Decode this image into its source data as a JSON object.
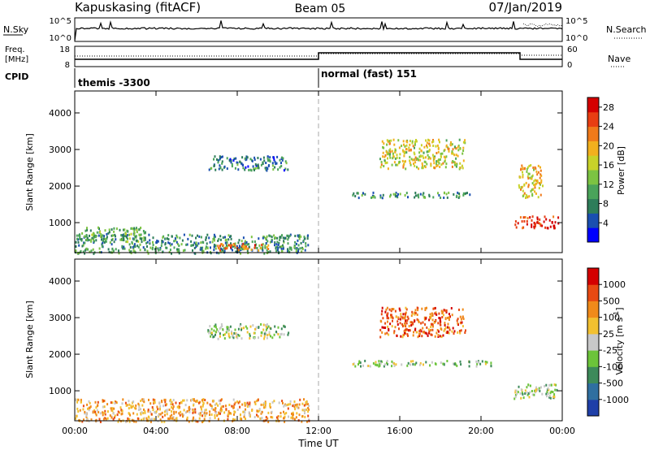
{
  "header": {
    "station": "Kapuskasing (fitACF)",
    "beam": "Beam 05",
    "date": "07/Jan/2019"
  },
  "params": {
    "nsky_label": "N.Sky",
    "nsearch_label": "N.Search",
    "freq_label_1": "Freq.",
    "freq_label_2": "[MHz]",
    "nave_label": "Nave",
    "cpid_label": "CPID",
    "nsky_ticks": [
      "10^5",
      "10^0"
    ],
    "nsearch_ticks": [
      "10^5",
      "10^0"
    ],
    "freq_ticks": [
      "18",
      "8"
    ],
    "nave_ticks": [
      "60",
      "0"
    ],
    "cpid_segments": [
      {
        "start_hour": 0,
        "label": "themis -3300"
      },
      {
        "start_hour": 12,
        "label": "normal (fast) 151"
      }
    ]
  },
  "chart_data": [
    {
      "type": "heatmap",
      "title": "",
      "ylabel": "Slant Range [km]",
      "ylim": [
        180,
        4600
      ],
      "yticks": [
        "1000",
        "2000",
        "3000",
        "4000"
      ],
      "xlim": [
        0,
        24
      ],
      "xticks": [
        "00:00",
        "04:00",
        "08:00",
        "12:00",
        "16:00",
        "20:00",
        "00:00"
      ],
      "colorbar": {
        "label": "Power [dB]",
        "ticks": [
          "4",
          "8",
          "12",
          "16",
          "20",
          "24",
          "28"
        ],
        "range": [
          0,
          30
        ],
        "colors": [
          "#0000ff",
          "#1a4fb0",
          "#2e7d5a",
          "#4aa35a",
          "#7cc342",
          "#c8d229",
          "#f2b01e",
          "#f07a1a",
          "#e83e12",
          "#d40000"
        ]
      },
      "features": [
        {
          "t0": 0.0,
          "t1": 11.5,
          "r0": 180,
          "r1": 700,
          "level": 0.3
        },
        {
          "t0": 0.2,
          "t1": 3.5,
          "r0": 500,
          "r1": 900,
          "level": 0.35
        },
        {
          "t0": 6.5,
          "t1": 10.5,
          "r0": 2450,
          "r1": 2850,
          "level": 0.25
        },
        {
          "t0": 7.0,
          "t1": 9.5,
          "r0": 250,
          "r1": 450,
          "level": 0.75
        },
        {
          "t0": 15.0,
          "t1": 19.2,
          "r0": 2500,
          "r1": 3300,
          "level": 0.55
        },
        {
          "t0": 13.5,
          "t1": 19.5,
          "r0": 1700,
          "r1": 1850,
          "level": 0.3
        },
        {
          "t0": 21.6,
          "t1": 23.8,
          "r0": 880,
          "r1": 1200,
          "level": 0.9
        },
        {
          "t0": 21.8,
          "t1": 23.0,
          "r0": 1700,
          "r1": 2600,
          "level": 0.6
        }
      ]
    },
    {
      "type": "heatmap",
      "title": "",
      "ylabel": "Slant Range [km]",
      "ylim": [
        180,
        4600
      ],
      "yticks": [
        "1000",
        "2000",
        "3000",
        "4000"
      ],
      "xlim": [
        0,
        24
      ],
      "xticks": [
        "00:00",
        "04:00",
        "08:00",
        "12:00",
        "16:00",
        "20:00",
        "00:00"
      ],
      "xlabel": "Time UT",
      "colorbar": {
        "label": "Velocity [m s^-1]",
        "ticks": [
          "1000",
          "500",
          "100",
          "25",
          "-25",
          "-100",
          "-500",
          "-1000"
        ],
        "colors": [
          "#1f3fa8",
          "#2f6fa0",
          "#3d8a5a",
          "#6cc43a",
          "#c8c8c8",
          "#f2c030",
          "#f08a1a",
          "#e84a12",
          "#d40000"
        ]
      },
      "features": [
        {
          "t0": 0.0,
          "t1": 11.5,
          "r0": 180,
          "r1": 800,
          "level": 0.65
        },
        {
          "t0": 6.5,
          "t1": 10.5,
          "r0": 2450,
          "r1": 2850,
          "level": 0.45
        },
        {
          "t0": 15.0,
          "t1": 19.2,
          "r0": 2500,
          "r1": 3300,
          "level": 0.8
        },
        {
          "t0": 13.5,
          "t1": 20.5,
          "r0": 1700,
          "r1": 1850,
          "level": 0.45
        },
        {
          "t0": 21.6,
          "t1": 23.8,
          "r0": 800,
          "r1": 1200,
          "level": 0.45
        }
      ]
    }
  ]
}
